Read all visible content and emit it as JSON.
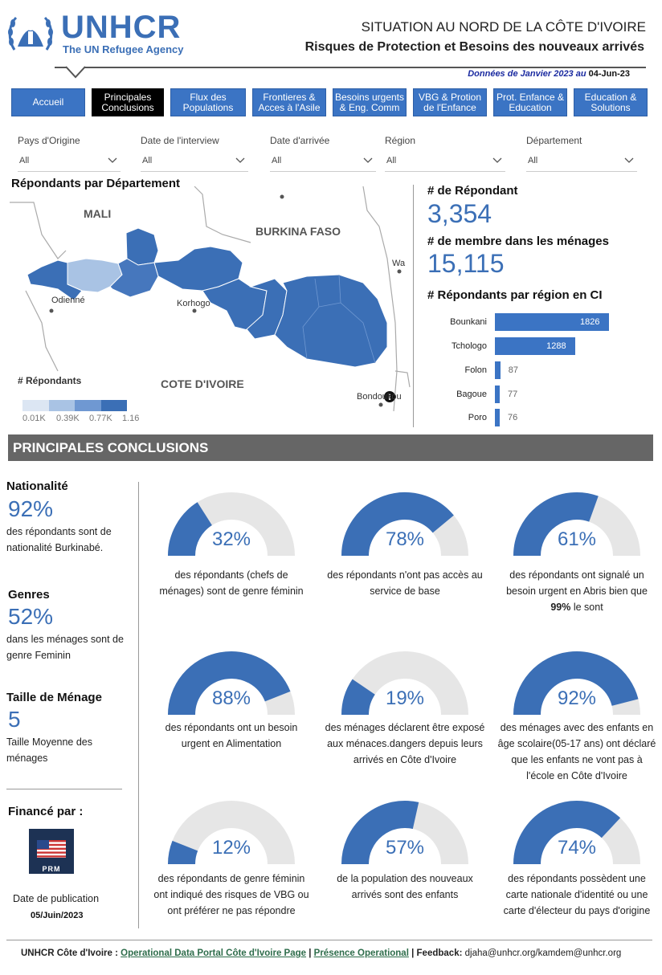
{
  "header": {
    "logo_title": "UNHCR",
    "logo_subtitle": "The UN Refugee Agency",
    "title": "SITUATION AU NORD DE LA CÔTE D'IVOIRE",
    "subtitle": "Risques de Protection et Besoins des nouveaux arrivés",
    "date_label": "Données de Janvier 2023 au",
    "date_value": "04-Jun-23"
  },
  "nav": [
    {
      "label": "Accueil",
      "active": false
    },
    {
      "label": "Principales Conclusions",
      "active": true
    },
    {
      "label": "Flux des Populations",
      "active": false
    },
    {
      "label": "Frontieres & Acces à l'Asile",
      "active": false
    },
    {
      "label": "Besoins urgents & Eng. Comm",
      "active": false
    },
    {
      "label": "VBG & Protion de l'Enfance",
      "active": false
    },
    {
      "label": "Prot. Enfance & Education",
      "active": false
    },
    {
      "label": "Education & Solutions",
      "active": false
    }
  ],
  "filters": [
    {
      "label": "Pays d'Origine",
      "value": "All"
    },
    {
      "label": "Date de l'interview",
      "value": "All"
    },
    {
      "label": "Date d'arrivée",
      "value": "All"
    },
    {
      "label": "Région",
      "value": "All"
    },
    {
      "label": "Département",
      "value": "All"
    }
  ],
  "map": {
    "title": "Répondants par Département",
    "labels": {
      "mali": "MALI",
      "burkina": "BURKINA FASO",
      "civ": "COTE D'IVOIRE"
    },
    "cities": {
      "odienne": "Odienné",
      "korhogo": "Korhogo",
      "wa": "Wa",
      "bondoukou": "Bondoukou"
    },
    "legend_title": "# Répondants",
    "legend_ticks": [
      "0.01K",
      "0.39K",
      "0.77K",
      "1.16"
    ],
    "legend_colors": [
      "#dce6f3",
      "#a9c3e4",
      "#6f98d2",
      "#3b6fb6"
    ]
  },
  "stats": {
    "respondents_label": "# de Répondant",
    "respondents_value": "3,354",
    "members_label": "# de membre dans les ménages",
    "members_value": "15,115",
    "by_region_label": "# Répondants par région en CI"
  },
  "chart_data": {
    "type": "bar",
    "orientation": "horizontal",
    "title": "# Répondants par région en CI",
    "categories": [
      "Bounkani",
      "Tchologo",
      "Folon",
      "Bagoue",
      "Poro"
    ],
    "values": [
      1826,
      1288,
      87,
      77,
      76
    ],
    "color": "#3b74c4"
  },
  "banner": "PRINCIPALES CONCLUSIONS",
  "left": {
    "nationality_title": "Nationalité",
    "nationality_value": "92%",
    "nationality_text": "des répondants sont de nationalité Burkinabé.",
    "gender_title": "Genres",
    "gender_value": "52%",
    "gender_text": "dans les ménages sont de genre Feminin",
    "household_title": "Taille de Ménage",
    "household_value": "5",
    "household_text": "Taille Moyenne des ménages",
    "funded_title": "Financé par :",
    "funder_badge": "PRM",
    "pub_label": "Date de publication",
    "pub_date": "05/Juin/2023"
  },
  "gauges": [
    {
      "value": 0.32,
      "label": "32%",
      "text": "des répondants (chefs de ménages) sont de genre féminin"
    },
    {
      "value": 0.78,
      "label": "78%",
      "text": "des répondants n'ont pas accès au  service de base"
    },
    {
      "value": 0.61,
      "label": "61%",
      "text_before": "des répondants ont signalé un besoin urgent en Abris bien que",
      "text_bold": "99%",
      "text_after": "le sont"
    },
    {
      "value": 0.88,
      "label": "88%",
      "text": "des répondants ont un besoin urgent en Alimentation"
    },
    {
      "value": 0.19,
      "label": "19%",
      "text": "des ménages déclarent     être exposé aux ménaces.dangers depuis leurs arrivés en Côte d'Ivoire"
    },
    {
      "value": 0.92,
      "label": "92%",
      "text": "des ménages avec des enfants en âge scolaire(05-17 ans) ont déclaré que les enfants ne vont pas à l'école en Côte d'Ivoire"
    },
    {
      "value": 0.12,
      "label": "12%",
      "text": "des répondants de genre féminin ont indiqué des risques de VBG ou ont préférer ne pas répondre"
    },
    {
      "value": 0.57,
      "label": "57%",
      "text": "de la population des nouveaux arrivés sont des enfants"
    },
    {
      "value": 0.74,
      "label": "74%",
      "text": "des répondants possèdent une carte nationale d'identité ou une carte d'électeur du pays d'origine"
    }
  ],
  "colors": {
    "accent": "#3b74c4",
    "gauge_track": "#e6e6e6",
    "gauge_fill": "#3b6fb6"
  },
  "footer": {
    "org": "UNHCR Côte d'Ivoire :",
    "link1": "Operational Data Portal Côte d'Ivoire Page",
    "sep": "|",
    "link2": "Présence Operational",
    "sep2": "|",
    "feedback_label": "Feedback:",
    "feedback_value": "djaha@unhcr.org/kamdem@unhcr.org"
  }
}
